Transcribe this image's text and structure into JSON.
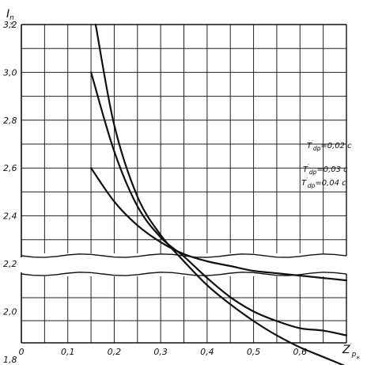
{
  "chart_data": {
    "type": "line",
    "ylabel": {
      "main": "I",
      "sub": "n",
      "sup": "*"
    },
    "xlabel": {
      "main": "Z",
      "sup": "′",
      "sub": "p",
      "sub2": "*"
    },
    "x_ticks": [
      "0",
      "0,1",
      "0,2",
      "0,3",
      "0,4",
      "0,5",
      "0,6"
    ],
    "x_tick_values": [
      0,
      0.1,
      0.2,
      0.3,
      0.4,
      0.5,
      0.6
    ],
    "y_ticks": [
      "1,8",
      "2,0",
      "2,2",
      "2,4",
      "2,6",
      "2,8",
      "3,0",
      "3,2"
    ],
    "y_tick_values": [
      1.8,
      2.0,
      2.2,
      2.4,
      2.6,
      2.8,
      3.0,
      3.2
    ],
    "xlim": [
      0,
      0.7
    ],
    "ylim": [
      1.8,
      3.2
    ],
    "axis_break": true,
    "grid": true,
    "series": [
      {
        "name": "T′dp=0,02c",
        "label_parts": {
          "main": "T",
          "sup": "′",
          "sub": "dp",
          "value": "=0,02 c"
        },
        "x": [
          0.15,
          0.2,
          0.25,
          0.3,
          0.35,
          0.4,
          0.45,
          0.5,
          0.55,
          0.6,
          0.65,
          0.7
        ],
        "y": [
          2.6,
          2.46,
          2.36,
          2.29,
          2.24,
          2.21,
          2.19,
          2.17,
          2.16,
          2.15,
          2.14,
          2.13
        ]
      },
      {
        "name": "T′dp=0,03c",
        "label_parts": {
          "main": "T",
          "sup": "′",
          "sub": "dp",
          "value": "=0,03 c"
        },
        "x": [
          0.15,
          0.2,
          0.25,
          0.3,
          0.35,
          0.4,
          0.45,
          0.5,
          0.55,
          0.6,
          0.65,
          0.7
        ],
        "y": [
          3.0,
          2.67,
          2.44,
          2.31,
          2.23,
          2.14,
          2.06,
          2.0,
          1.96,
          1.93,
          1.92,
          1.9
        ]
      },
      {
        "name": "T′dp=0,04c",
        "label_parts": {
          "main": "T",
          "sup": "′",
          "sub": "dp",
          "value": "=0,04 c"
        },
        "x": [
          0.16,
          0.2,
          0.25,
          0.3,
          0.35,
          0.4,
          0.45,
          0.5,
          0.55,
          0.6,
          0.65,
          0.7
        ],
        "y": [
          3.2,
          2.78,
          2.48,
          2.32,
          2.21,
          2.11,
          2.03,
          1.96,
          1.9,
          1.85,
          1.81,
          1.77
        ]
      }
    ]
  }
}
